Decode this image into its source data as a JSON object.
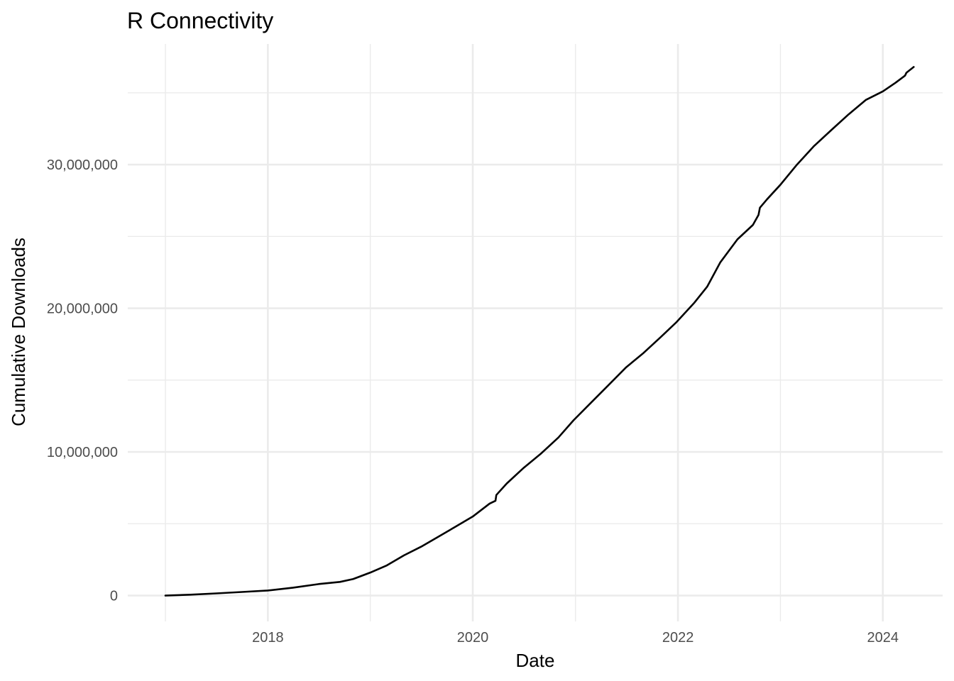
{
  "chart_data": {
    "type": "line",
    "title": "R Connectivity",
    "xlabel": "Date",
    "ylabel": "Cumulative Downloads",
    "x_major_ticks": [
      "2018-01-01",
      "2020-01-01",
      "2022-01-01",
      "2024-01-01"
    ],
    "x_major_tick_labels": [
      "2018",
      "2020",
      "2022",
      "2024"
    ],
    "x_minor_ticks": [
      "2017-01-01",
      "2019-01-01",
      "2021-01-01",
      "2023-01-01"
    ],
    "xlim": [
      "2016-08-20",
      "2024-08-01"
    ],
    "y_major_ticks": [
      0,
      10000000,
      20000000,
      30000000
    ],
    "y_tick_labels": [
      "0",
      "10,000,000",
      "20,000,000",
      "30,000,000"
    ],
    "y_minor_ticks": [
      5000000,
      15000000,
      25000000,
      35000000
    ],
    "ylim": [
      -1800000,
      38400000
    ],
    "grid": true,
    "legend": "none",
    "line_color": "#000000",
    "grid_color": "#ebebeb",
    "series": [
      {
        "x": [
          "2017-01-01",
          "2017-04-01",
          "2017-07-01",
          "2017-10-01",
          "2018-01-01",
          "2018-04-01",
          "2018-07-01",
          "2018-09-15",
          "2018-11-01",
          "2019-01-01",
          "2019-03-01",
          "2019-05-01",
          "2019-07-01",
          "2019-09-01",
          "2019-11-01",
          "2020-01-01",
          "2020-03-01",
          "2020-03-22",
          "2020-03-25",
          "2020-05-01",
          "2020-07-01",
          "2020-09-01",
          "2020-11-01",
          "2020-12-25",
          "2021-03-01",
          "2021-05-01",
          "2021-07-01",
          "2021-09-01",
          "2021-11-01",
          "2021-12-25",
          "2022-03-01",
          "2022-04-15",
          "2022-06-01",
          "2022-08-01",
          "2022-09-25",
          "2022-10-15",
          "2022-10-20",
          "2022-11-15",
          "2023-01-01",
          "2023-03-01",
          "2023-05-01",
          "2023-07-01",
          "2023-09-01",
          "2023-11-01",
          "2024-01-01",
          "2024-02-15",
          "2024-03-20",
          "2024-03-25",
          "2024-04-20"
        ],
        "y": [
          0,
          60000,
          150000,
          250000,
          350000,
          550000,
          800000,
          950000,
          1150000,
          1600000,
          2100000,
          2800000,
          3400000,
          4100000,
          4800000,
          5500000,
          6400000,
          6600000,
          7000000,
          7800000,
          8900000,
          9900000,
          11000000,
          12200000,
          13500000,
          14700000,
          15900000,
          16900000,
          18000000,
          19000000,
          20400000,
          21500000,
          23200000,
          24800000,
          25800000,
          26500000,
          27000000,
          27600000,
          28600000,
          30000000,
          31300000,
          32400000,
          33500000,
          34500000,
          35100000,
          35700000,
          36200000,
          36400000,
          36800000
        ]
      }
    ]
  }
}
